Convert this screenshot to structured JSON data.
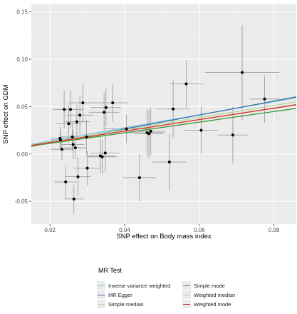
{
  "chart_data": {
    "type": "scatter",
    "xlabel": "SNP effect on Body mass index",
    "ylabel": "SNP effect on GDM",
    "xlim": [
      0.015,
      0.086
    ],
    "ylim": [
      -0.074,
      0.158
    ],
    "x_ticks": [
      {
        "value": 0.02,
        "label": "0.02"
      },
      {
        "value": 0.04,
        "label": "0.04"
      },
      {
        "value": 0.06,
        "label": "0.06"
      },
      {
        "value": 0.08,
        "label": "0.08"
      }
    ],
    "y_ticks": [
      {
        "value": -0.05,
        "label": "-0.05"
      },
      {
        "value": 0.0,
        "label": "0.00"
      },
      {
        "value": 0.05,
        "label": "0.05"
      },
      {
        "value": 0.1,
        "label": "0.10"
      },
      {
        "value": 0.15,
        "label": "0.15"
      }
    ],
    "grid": true,
    "legend_position": "bottom",
    "legend_title": "MR Test",
    "points": [
      {
        "x": 0.0227,
        "y": 0.0165,
        "xerr": 0.0025,
        "yerr": 0.012
      },
      {
        "x": 0.0228,
        "y": 0.015,
        "xerr": 0.0025,
        "yerr": 0.01
      },
      {
        "x": 0.0232,
        "y": 0.005,
        "xerr": 0.003,
        "yerr": 0.012
      },
      {
        "x": 0.0238,
        "y": 0.047,
        "xerr": 0.003,
        "yerr": 0.02
      },
      {
        "x": 0.0242,
        "y": -0.0295,
        "xerr": 0.003,
        "yerr": 0.018
      },
      {
        "x": 0.025,
        "y": 0.032,
        "xerr": 0.0035,
        "yerr": 0.02
      },
      {
        "x": 0.0255,
        "y": 0.047,
        "xerr": 0.0035,
        "yerr": 0.02
      },
      {
        "x": 0.026,
        "y": 0.018,
        "xerr": 0.003,
        "yerr": 0.015
      },
      {
        "x": 0.0262,
        "y": 0.01,
        "xerr": 0.003,
        "yerr": 0.015
      },
      {
        "x": 0.0264,
        "y": -0.0475,
        "xerr": 0.0025,
        "yerr": 0.015
      },
      {
        "x": 0.0268,
        "y": 0.0065,
        "xerr": 0.003,
        "yerr": 0.012
      },
      {
        "x": 0.0272,
        "y": 0.034,
        "xerr": 0.0035,
        "yerr": 0.018
      },
      {
        "x": 0.0275,
        "y": -0.024,
        "xerr": 0.0035,
        "yerr": 0.02
      },
      {
        "x": 0.028,
        "y": 0.041,
        "xerr": 0.0035,
        "yerr": 0.02
      },
      {
        "x": 0.0288,
        "y": 0.054,
        "xerr": 0.004,
        "yerr": 0.02
      },
      {
        "x": 0.0298,
        "y": 0.018,
        "xerr": 0.004,
        "yerr": 0.018
      },
      {
        "x": 0.03,
        "y": -0.015,
        "xerr": 0.0035,
        "yerr": 0.018
      },
      {
        "x": 0.0335,
        "y": -0.002,
        "xerr": 0.004,
        "yerr": 0.018
      },
      {
        "x": 0.034,
        "y": -0.003,
        "xerr": 0.004,
        "yerr": 0.018
      },
      {
        "x": 0.0345,
        "y": 0.044,
        "xerr": 0.004,
        "yerr": 0.02
      },
      {
        "x": 0.0348,
        "y": 0.001,
        "xerr": 0.004,
        "yerr": 0.02
      },
      {
        "x": 0.035,
        "y": 0.049,
        "xerr": 0.004,
        "yerr": 0.02
      },
      {
        "x": 0.0368,
        "y": 0.054,
        "xerr": 0.004,
        "yerr": 0.02
      },
      {
        "x": 0.0405,
        "y": 0.0265,
        "xerr": 0.006,
        "yerr": 0.015
      },
      {
        "x": 0.044,
        "y": -0.025,
        "xerr": 0.0045,
        "yerr": 0.025
      },
      {
        "x": 0.046,
        "y": 0.0225,
        "xerr": 0.0045,
        "yerr": 0.025
      },
      {
        "x": 0.0465,
        "y": 0.0215,
        "xerr": 0.004,
        "yerr": 0.025
      },
      {
        "x": 0.047,
        "y": 0.024,
        "xerr": 0.004,
        "yerr": 0.025
      },
      {
        "x": 0.052,
        "y": -0.0085,
        "xerr": 0.0045,
        "yerr": 0.03
      },
      {
        "x": 0.053,
        "y": 0.0475,
        "xerr": 0.0045,
        "yerr": 0.03
      },
      {
        "x": 0.0565,
        "y": 0.074,
        "xerr": 0.0045,
        "yerr": 0.025
      },
      {
        "x": 0.0605,
        "y": 0.025,
        "xerr": 0.0045,
        "yerr": 0.025
      },
      {
        "x": 0.069,
        "y": 0.02,
        "xerr": 0.004,
        "yerr": 0.03
      },
      {
        "x": 0.0715,
        "y": 0.086,
        "xerr": 0.01,
        "yerr": 0.05
      },
      {
        "x": 0.0775,
        "y": 0.058,
        "xerr": 0.004,
        "yerr": 0.025
      }
    ],
    "series": [
      {
        "name": "Inverse variance weighted",
        "color": "#7ec8e3",
        "intercept": 0,
        "slope": 0.69
      },
      {
        "name": "MR Egger",
        "color": "#3a6fb0",
        "intercept": -0.003,
        "slope": 0.735
      },
      {
        "name": "Simple median",
        "color": "#b5d99c",
        "intercept": 0,
        "slope": 0.64
      },
      {
        "name": "Simple mode",
        "color": "#3a9a3a",
        "intercept": 0,
        "slope": 0.56
      },
      {
        "name": "Weighted median",
        "color": "#f2a9a9",
        "intercept": 0,
        "slope": 0.6
      },
      {
        "name": "Weighted mode",
        "color": "#d7302a",
        "intercept": 0,
        "slope": 0.605
      }
    ]
  }
}
